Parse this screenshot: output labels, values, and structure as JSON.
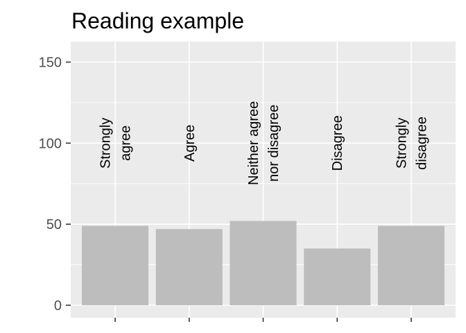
{
  "chart_data": {
    "type": "bar",
    "title": "Reading example",
    "xlabel": "",
    "ylabel": "",
    "categories": [
      "Strongly agree",
      "Agree",
      "Neither agree nor disagree",
      "Disagree",
      "Strongly disagree"
    ],
    "category_label_lines": [
      [
        "Strongly",
        "agree"
      ],
      [
        "Agree"
      ],
      [
        "Neither agree",
        "nor disagree"
      ],
      [
        "Disagree"
      ],
      [
        "Strongly",
        "disagree"
      ]
    ],
    "values": [
      49,
      47,
      52,
      35,
      49
    ],
    "ylim": [
      0,
      160
    ],
    "yticks": [
      0,
      50,
      100,
      150
    ],
    "ytick_labels": [
      "0",
      "50",
      "100",
      "150"
    ],
    "category_label_y_value": 100,
    "grid": true,
    "legend": "none",
    "colors": {
      "panel": "#ebebeb",
      "grid_major": "#ffffff",
      "bar": "#bdbdbd",
      "tick": "#333333",
      "tick_text": "#4d4d4d",
      "text": "#000000"
    }
  }
}
